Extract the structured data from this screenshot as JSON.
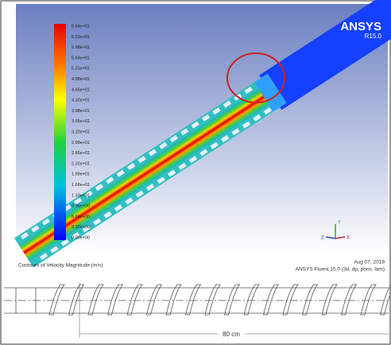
{
  "header": {
    "brand": "ANSYS",
    "release": "R15.0"
  },
  "legend": {
    "labels": [
      "6.64e+01",
      "6.31e+01",
      "5.98e+01",
      "5.64e+01",
      "5.31e+01",
      "4.98e+01",
      "4.65e+01",
      "4.32e+01",
      "3.98e+01",
      "3.65e+01",
      "3.32e+01",
      "2.99e+01",
      "2.66e+01",
      "2.32e+01",
      "1.99e+01",
      "1.66e+01",
      "1.33e+01",
      "9.96e+00",
      "6.64e+00",
      "3.32e+00",
      "0.00e+00"
    ]
  },
  "axes": {
    "y": "Y",
    "z": "Z",
    "x": "X"
  },
  "footer": {
    "caption": "Contours of Velocity Magnitude (m/s)",
    "date": "Aug 07, 2019",
    "solver": "ANSYS Fluent 15.0 (3d, dp, pbns, lam)"
  },
  "drawing": {
    "dimension": "80 cm"
  }
}
